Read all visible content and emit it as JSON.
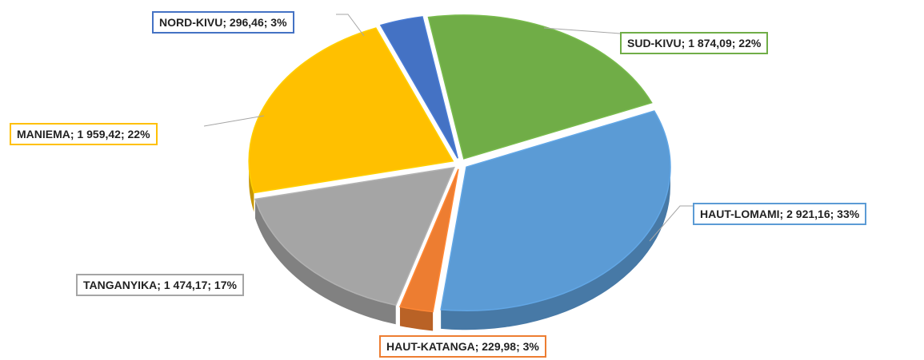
{
  "chart_data": {
    "type": "pie3d",
    "categories": [
      "SUD-KIVU",
      "HAUT-LOMAMI",
      "HAUT-KATANGA",
      "TANGANYIKA",
      "MANIEMA",
      "NORD-KIVU"
    ],
    "values": [
      1874.09,
      2921.16,
      229.98,
      1474.17,
      1959.42,
      296.46
    ],
    "value_labels": [
      "1 874,09",
      "2 921,16",
      "229,98",
      "1 474,17",
      "1 959,42",
      "296,46"
    ],
    "percents": [
      22,
      33,
      3,
      17,
      22,
      3
    ],
    "percent_labels": [
      "22%",
      "33%",
      "3%",
      "17%",
      "22%",
      "3%"
    ],
    "label_separator": "; ",
    "colors": [
      "#70ad47",
      "#5b9bd5",
      "#ed7d31",
      "#a5a5a5",
      "#ffc000",
      "#4472c4"
    ]
  }
}
